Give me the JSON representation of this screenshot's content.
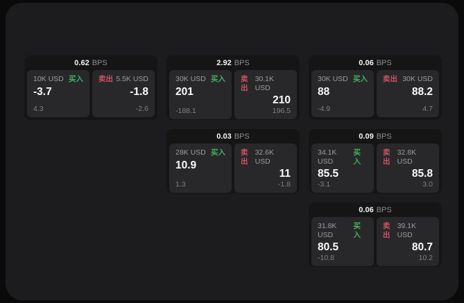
{
  "labels": {
    "unit": "BPS",
    "buy": "买入",
    "sell": "卖出"
  },
  "colors": {
    "buy_green": "#45b05e",
    "sell_red": "#cd5263",
    "window_bg": "#1c1c1e",
    "card_bg": "#151516",
    "panel_bg": "#28282a"
  },
  "cards": [
    {
      "bps": "0.62",
      "buy": {
        "amount": "10K USD",
        "value": "-3.7",
        "delta": "4.3"
      },
      "sell": {
        "amount": "5.5K USD",
        "value": "-1.8",
        "delta": "-2.6"
      }
    },
    {
      "bps": "2.92",
      "buy": {
        "amount": "30K USD",
        "value": "201",
        "delta": "-188.1"
      },
      "sell": {
        "amount": "30.1K USD",
        "value": "210",
        "delta": "196.5"
      }
    },
    {
      "bps": "0.06",
      "buy": {
        "amount": "30K USD",
        "value": "88",
        "delta": "-4.9"
      },
      "sell": {
        "amount": "30K USD",
        "value": "88.2",
        "delta": "4.7"
      }
    },
    {
      "bps": "0.03",
      "buy": {
        "amount": "28K USD",
        "value": "10.9",
        "delta": "1.3"
      },
      "sell": {
        "amount": "32.6K USD",
        "value": "11",
        "delta": "-1.8"
      }
    },
    {
      "bps": "0.09",
      "buy": {
        "amount": "34.1K USD",
        "value": "85.5",
        "delta": "-3.1"
      },
      "sell": {
        "amount": "32.8K USD",
        "value": "85.8",
        "delta": "3.0"
      }
    },
    {
      "bps": "0.06",
      "buy": {
        "amount": "31.8K USD",
        "value": "80.5",
        "delta": "-10.8"
      },
      "sell": {
        "amount": "39.1K USD",
        "value": "80.7",
        "delta": "10.2"
      }
    }
  ]
}
